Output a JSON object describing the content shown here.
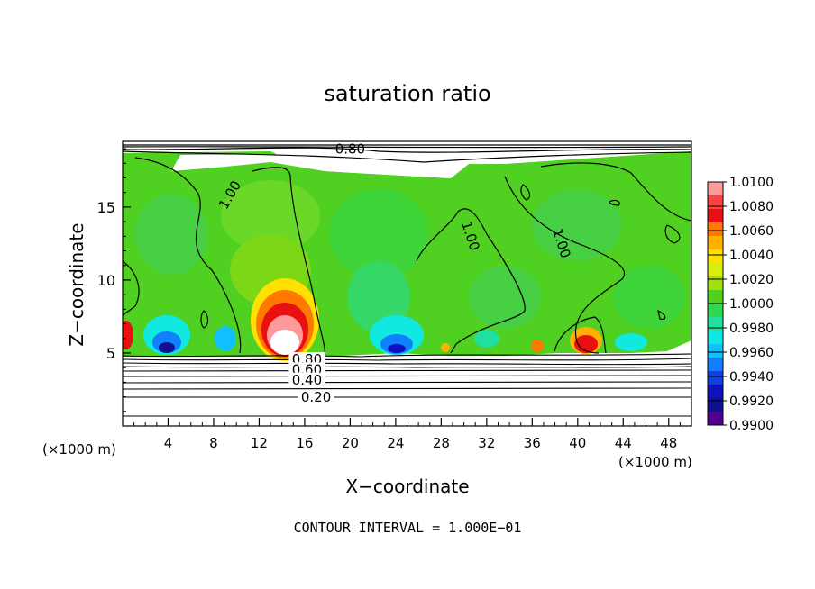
{
  "chart_data": {
    "type": "heatmap",
    "title": "saturation ratio",
    "xlabel": "X−coordinate",
    "ylabel": "Z−coordinate",
    "x_unit_left": "(×1000 m)",
    "x_unit_right": "(×1000 m)",
    "xlim": [
      0,
      50
    ],
    "ylim": [
      0,
      19.5
    ],
    "xticks": [
      4,
      8,
      12,
      16,
      20,
      24,
      28,
      32,
      36,
      40,
      44,
      48
    ],
    "yticks": [
      5,
      10,
      15
    ],
    "footer": "CONTOUR INTERVAL = 1.000E−01",
    "colorbar": {
      "levels": [
        "1.0100",
        "1.0080",
        "1.0060",
        "1.0040",
        "1.0020",
        "1.0000",
        "0.9980",
        "0.9960",
        "0.9940",
        "0.9920",
        "0.9900"
      ],
      "colors": [
        "#ff9a9a",
        "#ff4040",
        "#e81010",
        "#ff7800",
        "#ffb000",
        "#ffe000",
        "#d8ee10",
        "#a0e010",
        "#50d020",
        "#30d850",
        "#20e0a0",
        "#10e8e0",
        "#10c0ff",
        "#1080ff",
        "#1040e0",
        "#1010c0",
        "#101090",
        "#500090"
      ]
    },
    "contour_labels": [
      {
        "text": "0.80",
        "x": 16.2,
        "z": 4.5
      },
      {
        "text": "0.60",
        "x": 16.2,
        "z": 3.8
      },
      {
        "text": "0.40",
        "x": 16.2,
        "z": 3.1
      },
      {
        "text": "0.20",
        "x": 17.0,
        "z": 1.9
      },
      {
        "text": "0.80",
        "x": 20.0,
        "z": 18.9
      },
      {
        "text": "1.00",
        "x": 9.5,
        "z": 15.8
      },
      {
        "text": "1.00",
        "x": 30.5,
        "z": 13.0
      },
      {
        "text": "1.00",
        "x": 38.5,
        "z": 12.5
      }
    ]
  }
}
